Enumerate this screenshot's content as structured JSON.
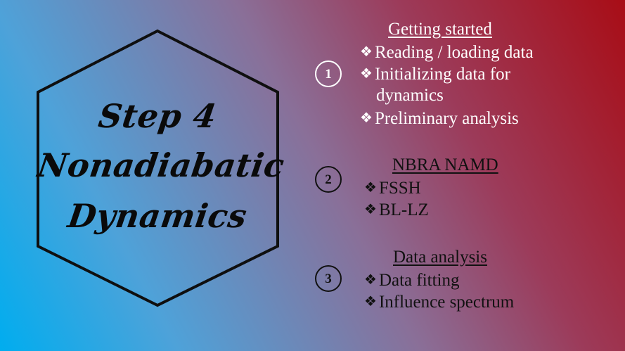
{
  "title": {
    "line1": "Step 4",
    "line2": "Nonadiabatic",
    "line3": "Dynamics"
  },
  "sections": [
    {
      "number": "1",
      "heading": "Getting started",
      "items": [
        "Reading / loading data",
        "Initializing data for",
        "dynamics",
        "Preliminary analysis"
      ]
    },
    {
      "number": "2",
      "heading": "NBRA NAMD",
      "items": [
        "FSSH",
        "BL-LZ"
      ]
    },
    {
      "number": "3",
      "heading": "Data analysis",
      "items": [
        "Data fitting",
        "Influence spectrum"
      ]
    }
  ],
  "bullet_glyph": "❖",
  "colors": {
    "gradient_left": "#00adef",
    "gradient_right": "#a80d16",
    "section1_text": "#ffffff",
    "section_text": "#111111"
  },
  "icons": [
    "hexagon-frame-icon",
    "numbered-circle-icon",
    "diamond-bullet-icon"
  ]
}
